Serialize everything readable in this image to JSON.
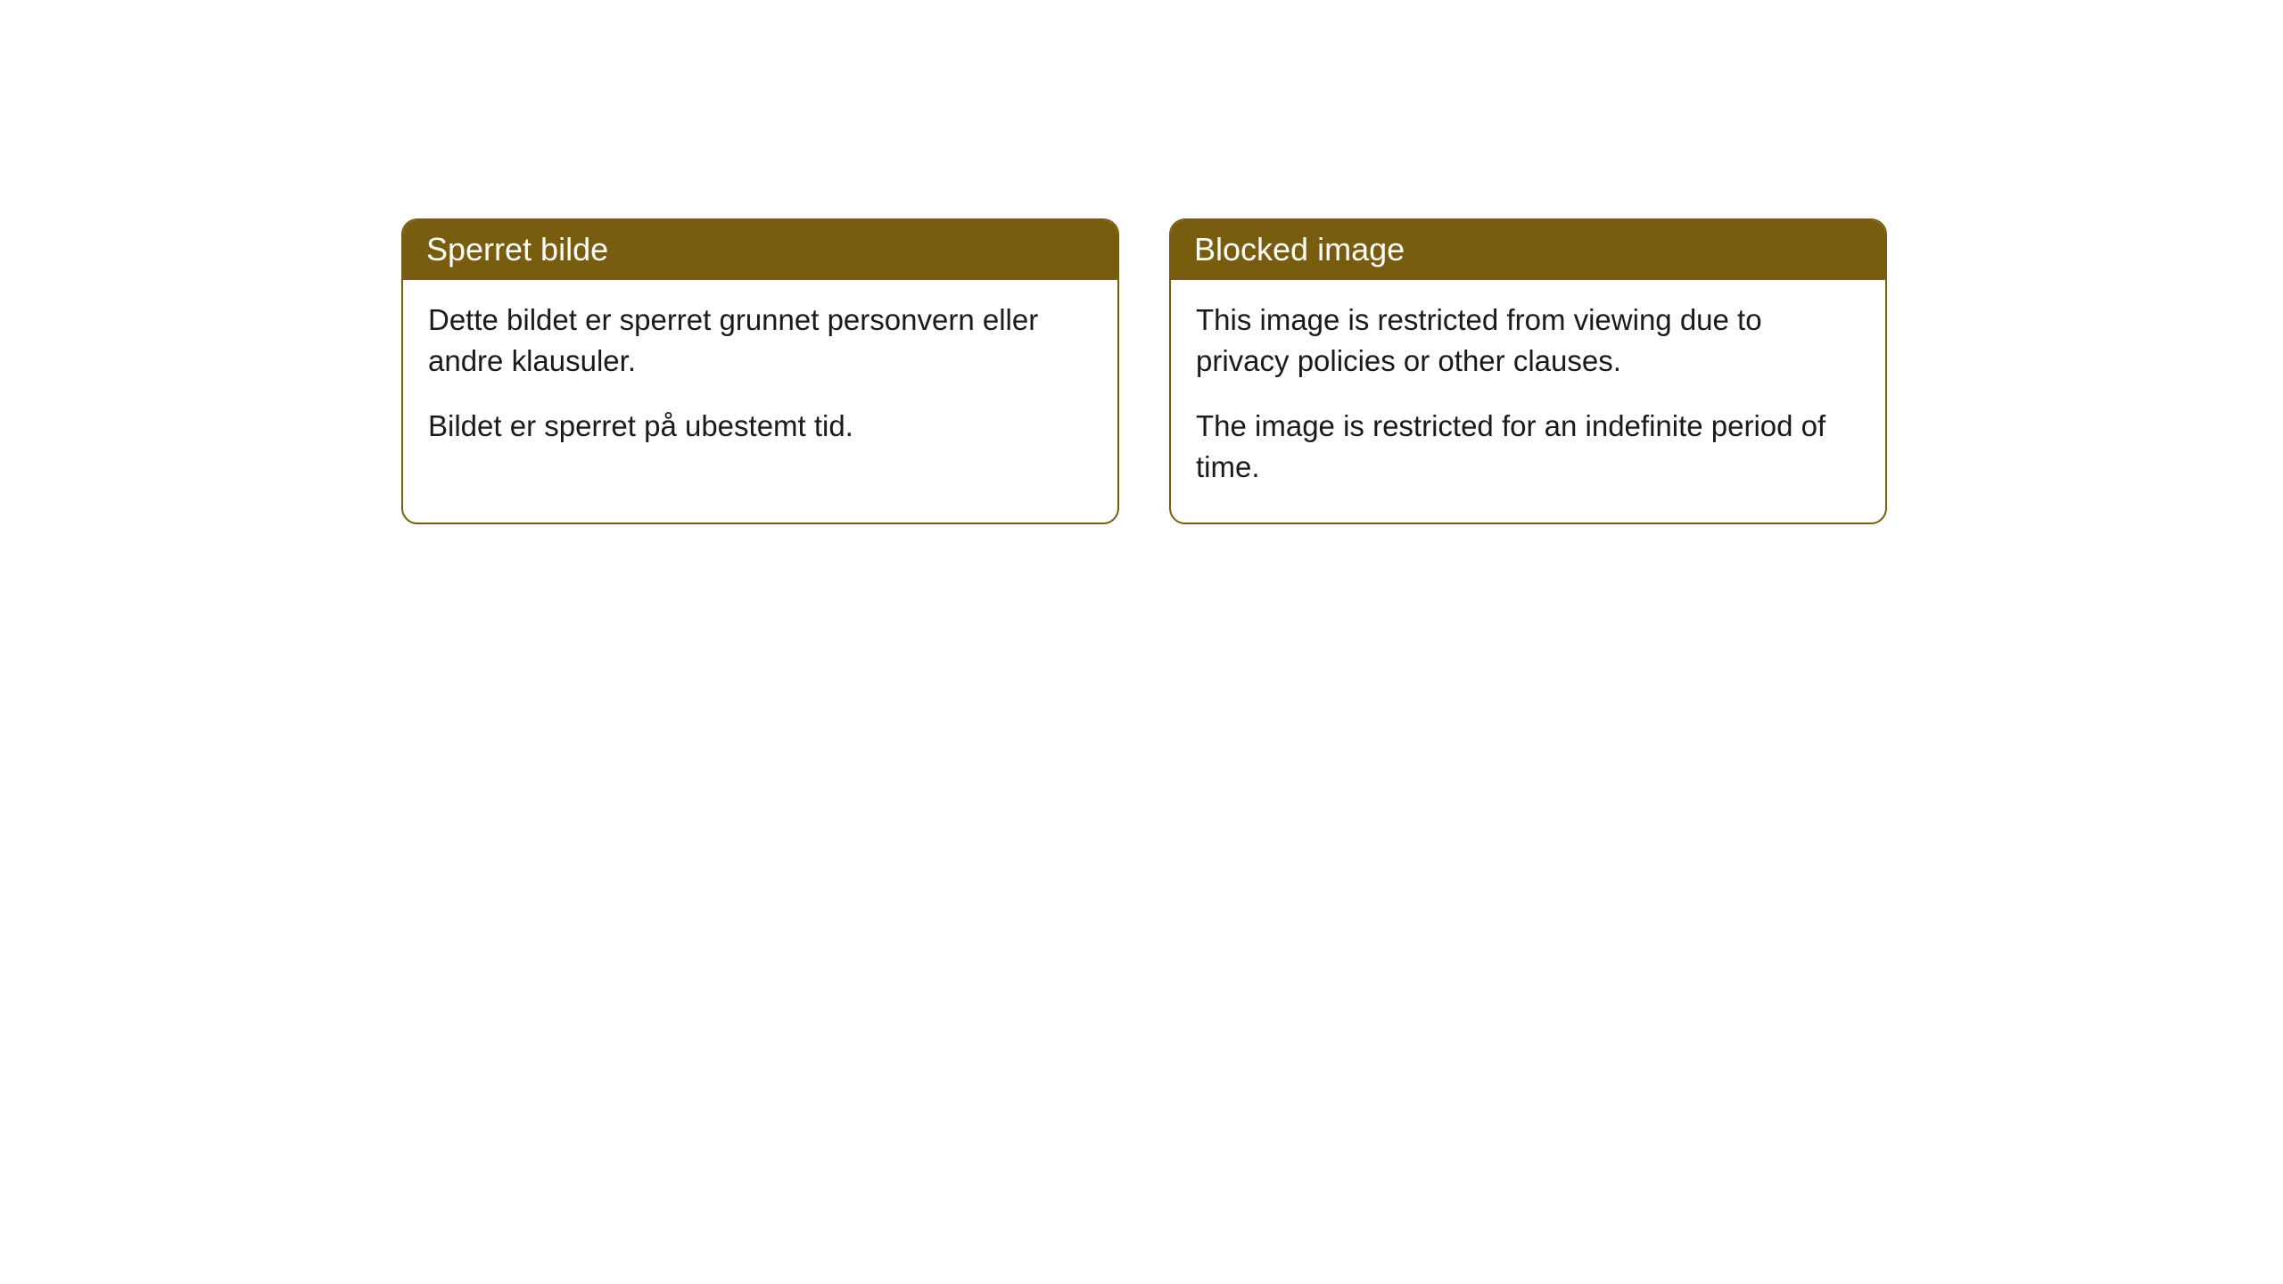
{
  "cards": [
    {
      "title": "Sperret bilde",
      "paragraph1": "Dette bildet er sperret grunnet personvern eller andre klausuler.",
      "paragraph2": "Bildet er sperret på ubestemt tid."
    },
    {
      "title": "Blocked image",
      "paragraph1": "This image is restricted from viewing due to privacy policies or other clauses.",
      "paragraph2": "The image is restricted for an indefinite period of time."
    }
  ],
  "style": {
    "header_background": "#785c10",
    "header_text_color": "#ffffff",
    "border_color": "#785c10",
    "body_background": "#ffffff",
    "body_text_color": "#1a1a1a",
    "border_radius": 18,
    "header_fontsize": 36,
    "body_fontsize": 33
  }
}
